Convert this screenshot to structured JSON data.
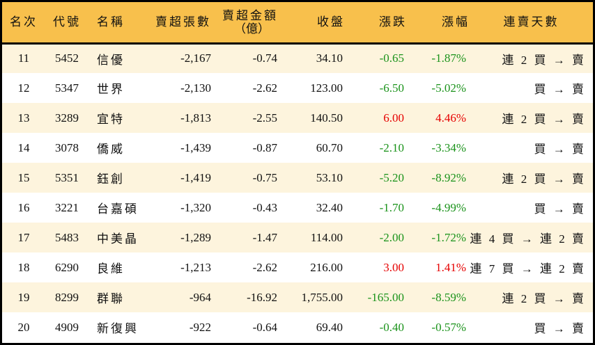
{
  "headers": [
    "名次",
    "代號",
    "名稱",
    "賣超張數",
    "賣超金額",
    "（億）",
    "收盤",
    "漲跌",
    "漲幅",
    "連賣天數"
  ],
  "colors": {
    "header_bg": "#f8c04c",
    "row_alt_bg": "#fdf4dd",
    "down": "#1b931b",
    "up": "#e60000"
  },
  "rows": [
    {
      "rank": "11",
      "code": "5452",
      "name": "信優",
      "sell_shares": "-2,167",
      "sell_amount": "-0.74",
      "close": "34.10",
      "change": "-0.65",
      "pct": "-1.87%",
      "dir": "down",
      "streak": "連 2 買 → 賣"
    },
    {
      "rank": "12",
      "code": "5347",
      "name": "世界",
      "sell_shares": "-2,130",
      "sell_amount": "-2.62",
      "close": "123.00",
      "change": "-6.50",
      "pct": "-5.02%",
      "dir": "down",
      "streak": "買 → 賣"
    },
    {
      "rank": "13",
      "code": "3289",
      "name": "宜特",
      "sell_shares": "-1,813",
      "sell_amount": "-2.55",
      "close": "140.50",
      "change": "6.00",
      "pct": "4.46%",
      "dir": "up",
      "streak": "連 2 買 → 賣"
    },
    {
      "rank": "14",
      "code": "3078",
      "name": "僑威",
      "sell_shares": "-1,439",
      "sell_amount": "-0.87",
      "close": "60.70",
      "change": "-2.10",
      "pct": "-3.34%",
      "dir": "down",
      "streak": "買 → 賣"
    },
    {
      "rank": "15",
      "code": "5351",
      "name": "鈺創",
      "sell_shares": "-1,419",
      "sell_amount": "-0.75",
      "close": "53.10",
      "change": "-5.20",
      "pct": "-8.92%",
      "dir": "down",
      "streak": "連 2 買 → 賣"
    },
    {
      "rank": "16",
      "code": "3221",
      "name": "台嘉碩",
      "sell_shares": "-1,320",
      "sell_amount": "-0.43",
      "close": "32.40",
      "change": "-1.70",
      "pct": "-4.99%",
      "dir": "down",
      "streak": "買 → 賣"
    },
    {
      "rank": "17",
      "code": "5483",
      "name": "中美晶",
      "sell_shares": "-1,289",
      "sell_amount": "-1.47",
      "close": "114.00",
      "change": "-2.00",
      "pct": "-1.72%",
      "dir": "down",
      "streak": "連 4 買 → 連 2 賣"
    },
    {
      "rank": "18",
      "code": "6290",
      "name": "良維",
      "sell_shares": "-1,213",
      "sell_amount": "-2.62",
      "close": "216.00",
      "change": "3.00",
      "pct": "1.41%",
      "dir": "up",
      "streak": "連 7 買 → 連 2 賣"
    },
    {
      "rank": "19",
      "code": "8299",
      "name": "群聯",
      "sell_shares": "-964",
      "sell_amount": "-16.92",
      "close": "1,755.00",
      "change": "-165.00",
      "pct": "-8.59%",
      "dir": "down",
      "streak": "連 2 買 → 賣"
    },
    {
      "rank": "20",
      "code": "4909",
      "name": "新復興",
      "sell_shares": "-922",
      "sell_amount": "-0.64",
      "close": "69.40",
      "change": "-0.40",
      "pct": "-0.57%",
      "dir": "down",
      "streak": "買 → 賣"
    }
  ]
}
